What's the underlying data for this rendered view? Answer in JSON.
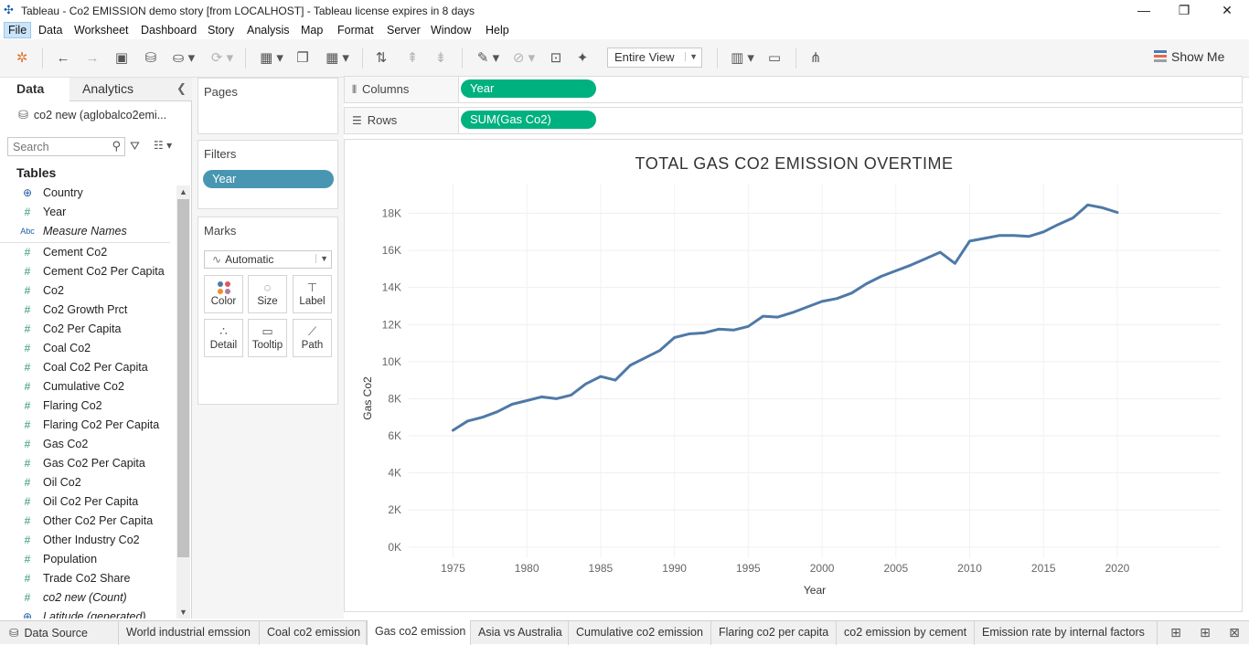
{
  "window": {
    "title": "Tableau - Co2 EMISSION demo story [from LOCALHOST] - Tableau license expires in 8 days",
    "minimize": "—",
    "restore": "❐",
    "close": "✕"
  },
  "menu": [
    "File",
    "Data",
    "Worksheet",
    "Dashboard",
    "Story",
    "Analysis",
    "Map",
    "Format",
    "Server",
    "Window",
    "Help"
  ],
  "toolbar": {
    "fit": "Entire View",
    "show_me": "Show Me"
  },
  "left_pane": {
    "tabs": [
      "Data",
      "Analytics"
    ],
    "datasource": "co2 new (aglobalco2emi...",
    "search_placeholder": "Search",
    "tables_heading": "Tables",
    "fields": [
      {
        "name": "Country",
        "kind": "geo"
      },
      {
        "name": "Year",
        "kind": "measure"
      },
      {
        "name": "Measure Names",
        "kind": "dim",
        "italic": true
      },
      {
        "name": "Cement Co2",
        "kind": "measure"
      },
      {
        "name": "Cement Co2 Per Capita",
        "kind": "measure"
      },
      {
        "name": "Co2",
        "kind": "measure"
      },
      {
        "name": "Co2 Growth Prct",
        "kind": "measure"
      },
      {
        "name": "Co2 Per Capita",
        "kind": "measure"
      },
      {
        "name": "Coal Co2",
        "kind": "measure"
      },
      {
        "name": "Coal Co2 Per Capita",
        "kind": "measure"
      },
      {
        "name": "Cumulative Co2",
        "kind": "measure"
      },
      {
        "name": "Flaring Co2",
        "kind": "measure"
      },
      {
        "name": "Flaring Co2 Per Capita",
        "kind": "measure"
      },
      {
        "name": "Gas Co2",
        "kind": "measure"
      },
      {
        "name": "Gas Co2 Per Capita",
        "kind": "measure"
      },
      {
        "name": "Oil Co2",
        "kind": "measure"
      },
      {
        "name": "Oil Co2 Per Capita",
        "kind": "measure"
      },
      {
        "name": "Other Co2 Per Capita",
        "kind": "measure"
      },
      {
        "name": "Other Industry Co2",
        "kind": "measure"
      },
      {
        "name": "Population",
        "kind": "measure"
      },
      {
        "name": "Trade Co2 Share",
        "kind": "measure"
      },
      {
        "name": "co2 new (Count)",
        "kind": "measure",
        "italic": true
      },
      {
        "name": "Latitude (generated)",
        "kind": "geo",
        "italic": true
      }
    ]
  },
  "cards": {
    "pages": "Pages",
    "filters": "Filters",
    "filter_pill": "Year",
    "marks": "Marks",
    "mark_type": "Automatic",
    "mark_buttons": [
      "Color",
      "Size",
      "Label",
      "Detail",
      "Tooltip",
      "Path"
    ]
  },
  "shelves": {
    "columns_label": "Columns",
    "columns_pill": "Year",
    "rows_label": "Rows",
    "rows_pill": "SUM(Gas Co2)"
  },
  "sheet_tabs": {
    "data_source": "Data Source",
    "tabs": [
      "World industrial emssion",
      "Coal co2 emission",
      "Gas co2 emission",
      "Asia vs Australia",
      "Cumulative co2 emission",
      "Flaring co2 per capita",
      "co2 emission by cement",
      "Emission rate by internal factors"
    ],
    "selected": "Gas co2 emission"
  },
  "colors": {
    "line": "#4e79a7",
    "dim_pill": "#4996b2",
    "measure_pill": "#00b180"
  },
  "chart_data": {
    "type": "line",
    "title": "TOTAL GAS CO2 EMISSION OVERTIME",
    "xlabel": "Year",
    "ylabel": "Gas Co2",
    "xlim": [
      1972,
      2027
    ],
    "ylim": [
      -600,
      19600
    ],
    "xticks": [
      1975,
      1980,
      1985,
      1990,
      1995,
      2000,
      2005,
      2010,
      2015,
      2020
    ],
    "yticks": [
      0,
      2000,
      4000,
      6000,
      8000,
      10000,
      12000,
      14000,
      16000,
      18000
    ],
    "ytick_labels": [
      "0K",
      "2K",
      "4K",
      "6K",
      "8K",
      "10K",
      "12K",
      "14K",
      "16K",
      "18K"
    ],
    "x": [
      1975,
      1976,
      1977,
      1978,
      1979,
      1980,
      1981,
      1982,
      1983,
      1984,
      1985,
      1986,
      1987,
      1988,
      1989,
      1990,
      1991,
      1992,
      1993,
      1994,
      1995,
      1996,
      1997,
      1998,
      1999,
      2000,
      2001,
      2002,
      2003,
      2004,
      2005,
      2006,
      2007,
      2008,
      2009,
      2010,
      2011,
      2012,
      2013,
      2014,
      2015,
      2016,
      2017,
      2018,
      2019,
      2020
    ],
    "values": [
      6300,
      6800,
      7000,
      7300,
      7700,
      7900,
      8100,
      8000,
      8200,
      8800,
      9200,
      9000,
      9800,
      10200,
      10600,
      11300,
      11500,
      11550,
      11750,
      11700,
      11900,
      12450,
      12400,
      12650,
      12950,
      13250,
      13400,
      13700,
      14200,
      14600,
      14900,
      15200,
      15550,
      15900,
      15300,
      16500,
      16650,
      16800,
      16800,
      16750,
      17000,
      17400,
      17750,
      18450,
      18300,
      18050
    ],
    "grid": true,
    "legend": "none"
  }
}
